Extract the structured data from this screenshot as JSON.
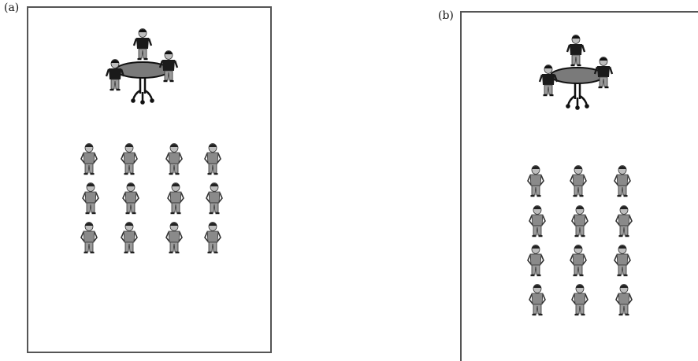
{
  "panels": [
    {
      "label": "(a)",
      "audience_rows": 3,
      "audience_cols": 4,
      "presenters": 3
    },
    {
      "label": "(b)",
      "audience_rows": 4,
      "audience_cols": 3,
      "presenters": 3
    }
  ],
  "colors": {
    "frame": "#555555",
    "table_top": "#7a7a7a",
    "figure_dark": "#1a1a1a",
    "figure_gray": "#8a8a8a"
  }
}
